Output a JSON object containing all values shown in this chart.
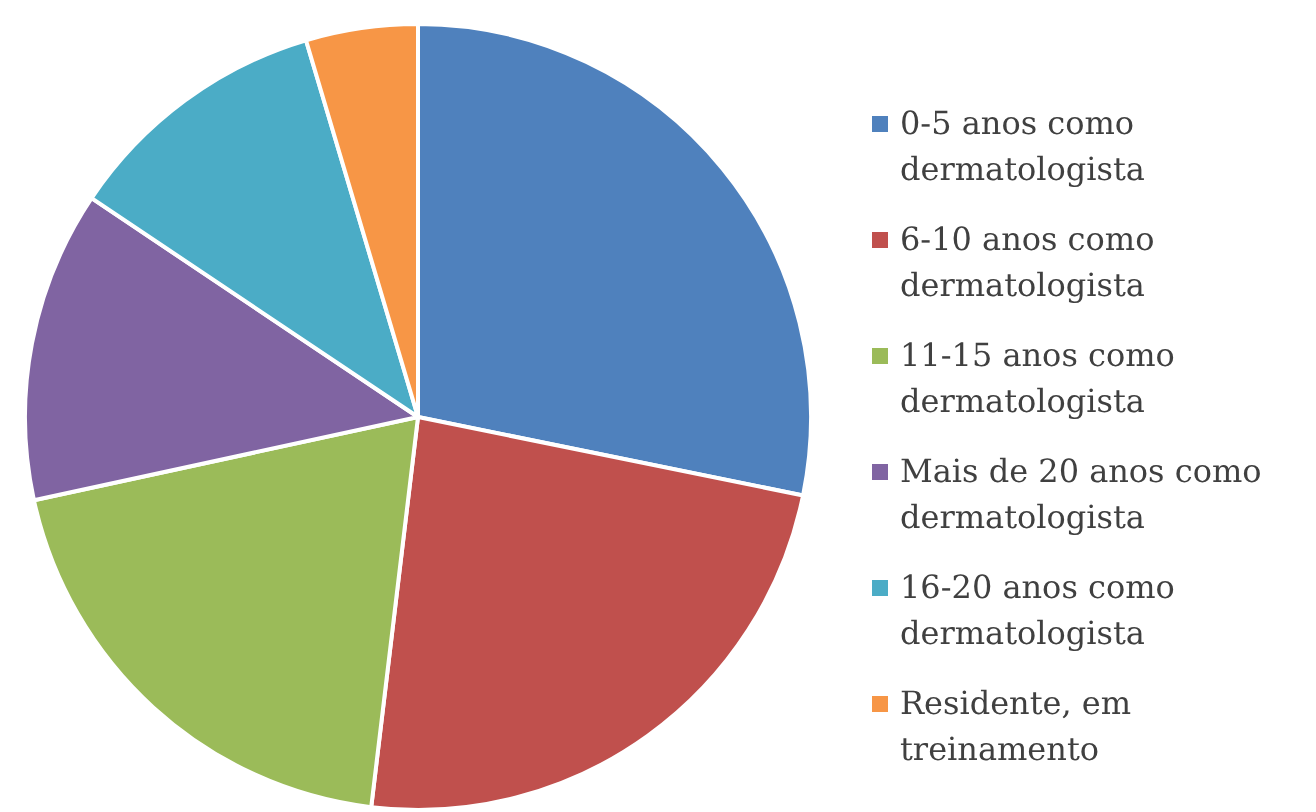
{
  "chart_data": {
    "type": "pie",
    "categories": [
      "0-5 anos como dermatologista",
      "6-10 anos como dermatologista",
      "11-15 anos como dermatologista",
      "Mais de 20 anos como dermatologista",
      "16-20 anos como dermatologista",
      "Residente, em treinamento"
    ],
    "values": [
      28.2,
      23.7,
      19.7,
      12.8,
      11.0,
      4.6
    ],
    "colors": [
      "#4f81bd",
      "#c0504d",
      "#9bbb59",
      "#8064a2",
      "#4bacc6",
      "#f79646"
    ],
    "legend": "right"
  }
}
